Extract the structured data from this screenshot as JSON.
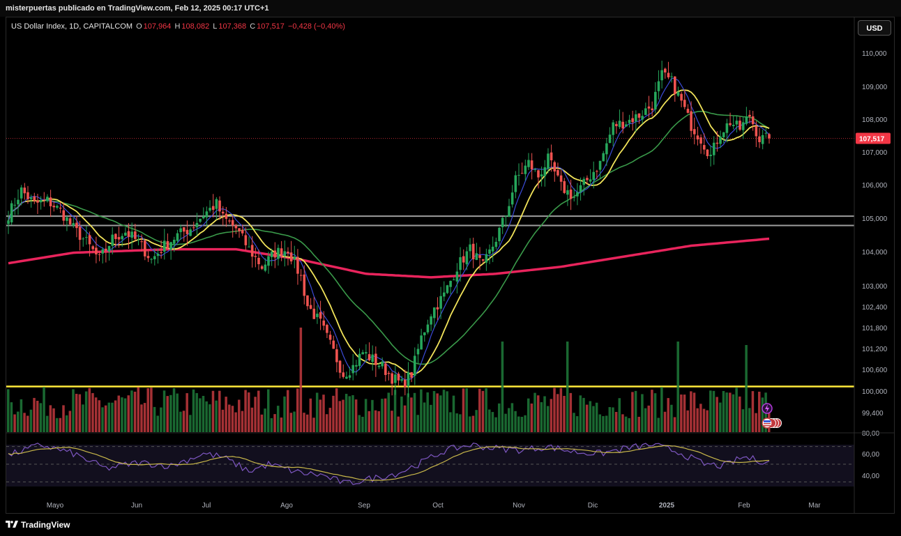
{
  "header": {
    "publisher_line": "misterpuertas publicado en TradingView.com, Feb 12, 2025 00:17 UTC+1"
  },
  "legend": {
    "symbol": "US Dollar Index, 1D, CAPITALCOM",
    "open_label": "O",
    "open": "107,964",
    "high_label": "H",
    "high": "108,082",
    "low_label": "L",
    "low": "107,368",
    "close_label": "C",
    "close": "107,517",
    "change": "−0,428 (−0,40%)"
  },
  "currency_button": "USD",
  "price_badge": "107,517",
  "footer": {
    "brand": "TradingView"
  },
  "colors": {
    "up": "#1f7a3a",
    "down": "#c2393e",
    "ema_fast": "#3b4bd8",
    "ema_mid": "#f2e45a",
    "ema_slow": "#3a9a4a",
    "ema_long": "#e8245c",
    "support_yellow": "#ffeb3b",
    "resistance_gray": "#9e9e9e",
    "rsi": "#7e57c2",
    "rsi_ma": "#c9b84a",
    "badge": "#f23645"
  },
  "icons": [
    "lightning-icon",
    "us-flag-icon"
  ],
  "chart_data": [
    {
      "type": "candlestick",
      "title": "US Dollar Index, 1D, CAPITALCOM",
      "x_tick_labels": [
        "Mayo",
        "Jun",
        "Jul",
        "Ago",
        "Sep",
        "Oct",
        "Nov",
        "Dic",
        "2025",
        "Feb",
        "Mar"
      ],
      "y_tick_labels": [
        "110,000",
        "109,000",
        "108,000",
        "107,000",
        "106,000",
        "105,000",
        "104,000",
        "103,000",
        "102,400",
        "101,800",
        "101,200",
        "100,600",
        "100,000",
        "99,400"
      ],
      "y_scale": "log",
      "ylim": [
        99.2,
        110.4
      ],
      "close_path": [
        [
          0,
          105.3
        ],
        [
          4,
          106.0
        ],
        [
          8,
          105.6
        ],
        [
          12,
          105.7
        ],
        [
          16,
          105.4
        ],
        [
          20,
          104.9
        ],
        [
          24,
          104.5
        ],
        [
          28,
          104.0
        ],
        [
          32,
          104.6
        ],
        [
          36,
          104.8
        ],
        [
          40,
          104.5
        ],
        [
          44,
          104.0
        ],
        [
          48,
          104.4
        ],
        [
          52,
          104.7
        ],
        [
          56,
          104.9
        ],
        [
          60,
          105.3
        ],
        [
          64,
          105.6
        ],
        [
          66,
          105.2
        ],
        [
          70,
          104.9
        ],
        [
          74,
          104.3
        ],
        [
          78,
          103.8
        ],
        [
          82,
          104.2
        ],
        [
          86,
          104.3
        ],
        [
          90,
          103.5
        ],
        [
          92,
          102.7
        ],
        [
          96,
          102.2
        ],
        [
          100,
          101.4
        ],
        [
          103,
          100.8
        ],
        [
          106,
          101.0
        ],
        [
          109,
          101.4
        ],
        [
          112,
          101.2
        ],
        [
          115,
          101.0
        ],
        [
          118,
          100.7
        ],
        [
          121,
          100.5
        ],
        [
          124,
          100.8
        ],
        [
          127,
          101.8
        ],
        [
          130,
          102.5
        ],
        [
          134,
          103.0
        ],
        [
          138,
          103.8
        ],
        [
          142,
          104.3
        ],
        [
          146,
          103.8
        ],
        [
          150,
          104.6
        ],
        [
          153,
          105.3
        ],
        [
          156,
          106.3
        ],
        [
          160,
          106.8
        ],
        [
          163,
          106.4
        ],
        [
          166,
          106.9
        ],
        [
          170,
          106.1
        ],
        [
          174,
          105.8
        ],
        [
          178,
          106.3
        ],
        [
          182,
          106.8
        ],
        [
          186,
          107.9
        ],
        [
          190,
          108.0
        ],
        [
          194,
          108.2
        ],
        [
          198,
          108.5
        ],
        [
          201,
          109.4
        ],
        [
          204,
          109.2
        ],
        [
          207,
          108.6
        ],
        [
          210,
          107.9
        ],
        [
          213,
          107.5
        ],
        [
          216,
          107.0
        ],
        [
          219,
          107.7
        ],
        [
          222,
          108.0
        ],
        [
          225,
          107.8
        ],
        [
          228,
          108.2
        ],
        [
          231,
          107.5
        ],
        [
          234,
          107.517
        ]
      ],
      "overlays": [
        {
          "name": "",
          "color": "#3b4bd8",
          "smoothing": 6
        },
        {
          "name": "",
          "color": "#f2e45a",
          "smoothing": 12
        },
        {
          "name": "",
          "color": "#3a9a4a",
          "smoothing": 30
        },
        {
          "name": "",
          "color": "#e8245c",
          "path": [
            [
              0,
              103.9
            ],
            [
              20,
              104.2
            ],
            [
              50,
              104.3
            ],
            [
              70,
              104.3
            ],
            [
              90,
              104.0
            ],
            [
              110,
              103.6
            ],
            [
              130,
              103.5
            ],
            [
              150,
              103.6
            ],
            [
              170,
              103.8
            ],
            [
              190,
              104.1
            ],
            [
              210,
              104.4
            ],
            [
              234,
              104.6
            ]
          ]
        }
      ],
      "horizontal_lines": [
        105.25,
        104.98,
        100.45
      ],
      "last_price": 107.517
    },
    {
      "type": "line",
      "name": "",
      "y_tick_labels": [
        "80,00",
        "60,00",
        "40,00"
      ],
      "ylim": [
        20,
        80
      ],
      "bands": [
        70,
        50,
        30
      ],
      "rsi_path": [
        [
          0,
          60
        ],
        [
          10,
          72
        ],
        [
          20,
          62
        ],
        [
          30,
          45
        ],
        [
          40,
          52
        ],
        [
          50,
          48
        ],
        [
          60,
          62
        ],
        [
          66,
          58
        ],
        [
          74,
          42
        ],
        [
          80,
          50
        ],
        [
          90,
          40
        ],
        [
          96,
          38
        ],
        [
          104,
          28
        ],
        [
          112,
          34
        ],
        [
          120,
          40
        ],
        [
          126,
          50
        ],
        [
          134,
          65
        ],
        [
          142,
          72
        ],
        [
          150,
          68
        ],
        [
          158,
          66
        ],
        [
          166,
          70
        ],
        [
          174,
          64
        ],
        [
          182,
          62
        ],
        [
          190,
          68
        ],
        [
          198,
          72
        ],
        [
          206,
          64
        ],
        [
          214,
          50
        ],
        [
          220,
          48
        ],
        [
          226,
          58
        ],
        [
          234,
          52
        ]
      ]
    }
  ]
}
